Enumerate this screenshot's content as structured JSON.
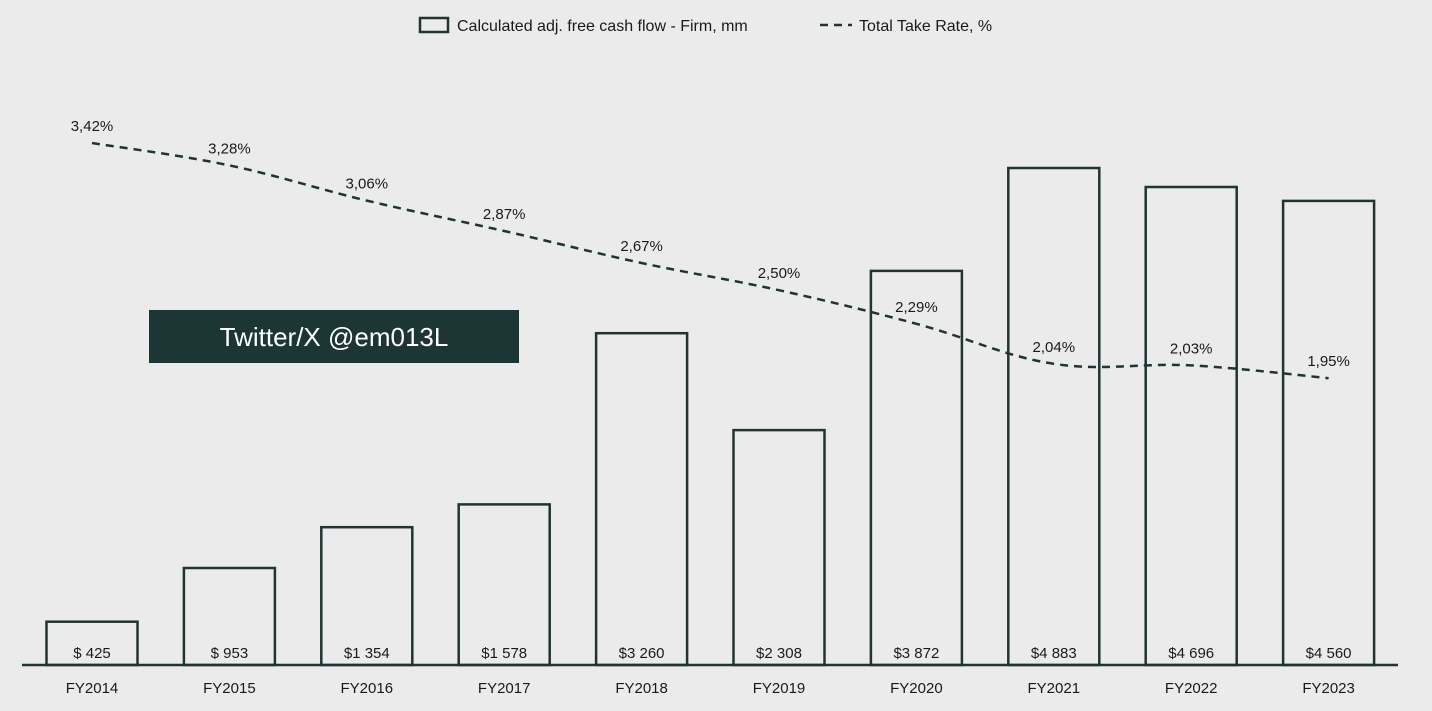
{
  "chart_data": {
    "type": "bar",
    "categories": [
      "FY2014",
      "FY2015",
      "FY2016",
      "FY2017",
      "FY2018",
      "FY2019",
      "FY2020",
      "FY2021",
      "FY2022",
      "FY2023"
    ],
    "series": [
      {
        "name": "Calculated adj. free cash flow - Firm, mm",
        "type": "bar",
        "values": [
          425,
          953,
          1354,
          1578,
          3260,
          2308,
          3872,
          4883,
          4696,
          4560
        ],
        "labels": [
          "$ 425",
          "$ 953",
          "$1 354",
          "$1 578",
          "$3 260",
          "$2 308",
          "$3 872",
          "$4 883",
          "$4 696",
          "$4 560"
        ]
      },
      {
        "name": "Total Take Rate, %",
        "type": "line",
        "style": "dashed",
        "values": [
          3.42,
          3.28,
          3.06,
          2.87,
          2.67,
          2.5,
          2.29,
          2.04,
          2.03,
          1.95
        ],
        "labels": [
          "3,42%",
          "3,28%",
          "3,06%",
          "2,87%",
          "2,67%",
          "2,50%",
          "2,29%",
          "2,04%",
          "2,03%",
          "1,95%"
        ]
      }
    ],
    "bar_ylim": [
      0,
      5000
    ],
    "line_ylim": [
      0,
      3.7
    ],
    "legend_position": "top-center",
    "grid": false,
    "colors": {
      "stroke": "#1e3533",
      "background": "#ebebeb",
      "watermark_bg": "#1b3634"
    }
  },
  "watermark": {
    "text": "Twitter/X @em013L"
  }
}
